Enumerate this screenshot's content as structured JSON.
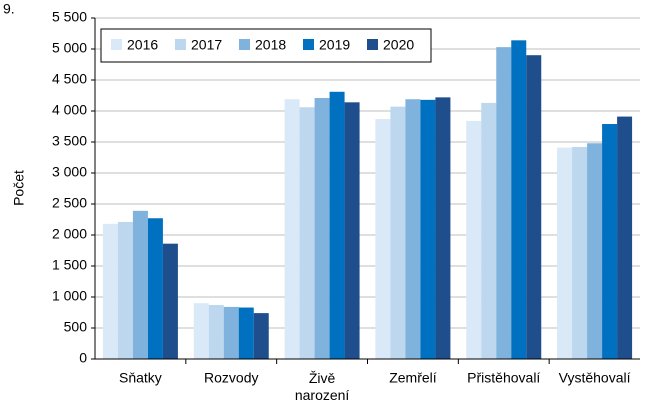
{
  "chart_data": {
    "type": "bar",
    "title": "9.",
    "ylabel": "Počet",
    "categories": [
      "Sňatky",
      "Rozvody",
      "Živě narození",
      "Zemřelí",
      "Přistěhovalí",
      "Vystěhovalí"
    ],
    "series": [
      {
        "name": "2016",
        "color": "#d9e9f7",
        "values": [
          2180,
          900,
          4190,
          3870,
          3840,
          3410
        ]
      },
      {
        "name": "2017",
        "color": "#bdd7ee",
        "values": [
          2210,
          870,
          4060,
          4070,
          4130,
          3420
        ]
      },
      {
        "name": "2018",
        "color": "#7fb3de",
        "values": [
          2390,
          840,
          4210,
          4190,
          5030,
          3480
        ]
      },
      {
        "name": "2019",
        "color": "#0070c0",
        "values": [
          2270,
          830,
          4310,
          4180,
          5140,
          3790
        ]
      },
      {
        "name": "2020",
        "color": "#1f4e8c",
        "values": [
          1860,
          740,
          4140,
          4220,
          4900,
          3910
        ]
      }
    ],
    "ylim": [
      0,
      5500
    ],
    "yticks": [
      0,
      500,
      {
        "value": 1000,
        "label": "1 000"
      },
      {
        "value": 1500,
        "label": "1 500"
      },
      {
        "value": 2000,
        "label": "2 000"
      },
      {
        "value": 2500,
        "label": "2 500"
      },
      {
        "value": 3000,
        "label": "3 000"
      },
      {
        "value": 3500,
        "label": "3 500"
      },
      {
        "value": 4000,
        "label": "4 000"
      },
      {
        "value": 4500,
        "label": "4 500"
      },
      {
        "value": 5000,
        "label": "5 000"
      },
      {
        "value": 5500,
        "label": "5 500"
      }
    ],
    "grid": true,
    "legend": "upper left"
  }
}
